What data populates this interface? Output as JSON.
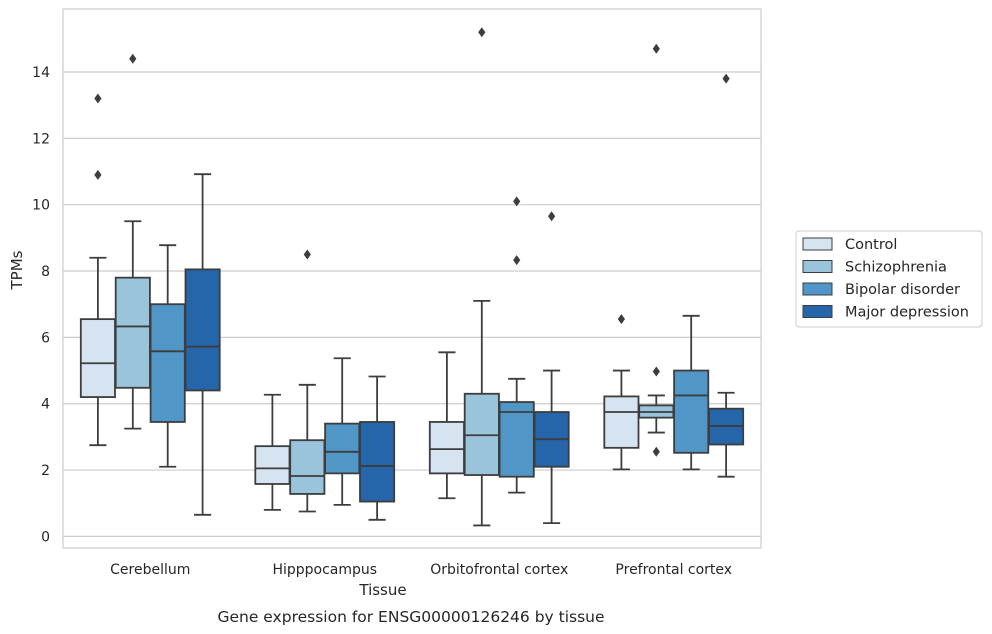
{
  "chart_data": {
    "type": "box",
    "xlabel": "Tissue",
    "ylabel": "TPMs",
    "caption": "Gene expression for ENSG00000126246 by tissue",
    "ylim": [
      -0.35,
      15.9
    ],
    "yticks": [
      0,
      2,
      4,
      6,
      8,
      10,
      12,
      14
    ],
    "grid": "horizontal",
    "legend_placement": "right",
    "categories": [
      "Cerebellum",
      "Hipppocampus",
      "Orbitofrontal cortex",
      "Prefrontal cortex"
    ],
    "series": [
      {
        "name": "Control",
        "color": "#d6e3f1",
        "boxes": [
          {
            "whislo": 2.75,
            "q1": 4.2,
            "med": 5.22,
            "q3": 6.55,
            "whishi": 8.4,
            "fliers": [
              10.9,
              13.2
            ]
          },
          {
            "whislo": 0.8,
            "q1": 1.58,
            "med": 2.05,
            "q3": 2.72,
            "whishi": 4.27,
            "fliers": []
          },
          {
            "whislo": 1.15,
            "q1": 1.9,
            "med": 2.63,
            "q3": 3.45,
            "whishi": 5.55,
            "fliers": []
          },
          {
            "whislo": 2.02,
            "q1": 2.67,
            "med": 3.75,
            "q3": 4.22,
            "whishi": 5.0,
            "fliers": [
              6.55
            ]
          }
        ]
      },
      {
        "name": "Schizophrenia",
        "color": "#9ac3dc",
        "boxes": [
          {
            "whislo": 3.25,
            "q1": 4.48,
            "med": 6.33,
            "q3": 7.8,
            "whishi": 9.5,
            "fliers": [
              14.4
            ]
          },
          {
            "whislo": 0.75,
            "q1": 1.28,
            "med": 1.82,
            "q3": 2.9,
            "whishi": 4.57,
            "fliers": [
              8.5
            ]
          },
          {
            "whislo": 0.33,
            "q1": 1.85,
            "med": 3.05,
            "q3": 4.3,
            "whishi": 7.1,
            "fliers": [
              15.2
            ]
          },
          {
            "whislo": 3.13,
            "q1": 3.58,
            "med": 3.75,
            "q3": 3.95,
            "whishi": 4.25,
            "fliers": [
              2.55,
              4.97,
              14.7
            ]
          }
        ]
      },
      {
        "name": "Bipolar disorder",
        "color": "#5096c7",
        "boxes": [
          {
            "whislo": 2.1,
            "q1": 3.45,
            "med": 5.58,
            "q3": 7.0,
            "whishi": 8.78,
            "fliers": []
          },
          {
            "whislo": 0.95,
            "q1": 1.9,
            "med": 2.55,
            "q3": 3.4,
            "whishi": 5.37,
            "fliers": []
          },
          {
            "whislo": 1.32,
            "q1": 1.8,
            "med": 3.75,
            "q3": 4.05,
            "whishi": 4.75,
            "fliers": [
              8.33,
              10.1
            ]
          },
          {
            "whislo": 2.02,
            "q1": 2.52,
            "med": 4.25,
            "q3": 5.0,
            "whishi": 6.65,
            "fliers": []
          }
        ]
      },
      {
        "name": "Major depression",
        "color": "#2565a9",
        "boxes": [
          {
            "whislo": 0.65,
            "q1": 4.4,
            "med": 5.72,
            "q3": 8.05,
            "whishi": 10.92,
            "fliers": []
          },
          {
            "whislo": 0.5,
            "q1": 1.05,
            "med": 2.12,
            "q3": 3.45,
            "whishi": 4.82,
            "fliers": []
          },
          {
            "whislo": 0.4,
            "q1": 2.1,
            "med": 2.93,
            "q3": 3.75,
            "whishi": 5.0,
            "fliers": [
              9.65
            ]
          },
          {
            "whislo": 1.8,
            "q1": 2.77,
            "med": 3.33,
            "q3": 3.85,
            "whishi": 4.33,
            "fliers": [
              13.8
            ]
          }
        ]
      }
    ]
  }
}
